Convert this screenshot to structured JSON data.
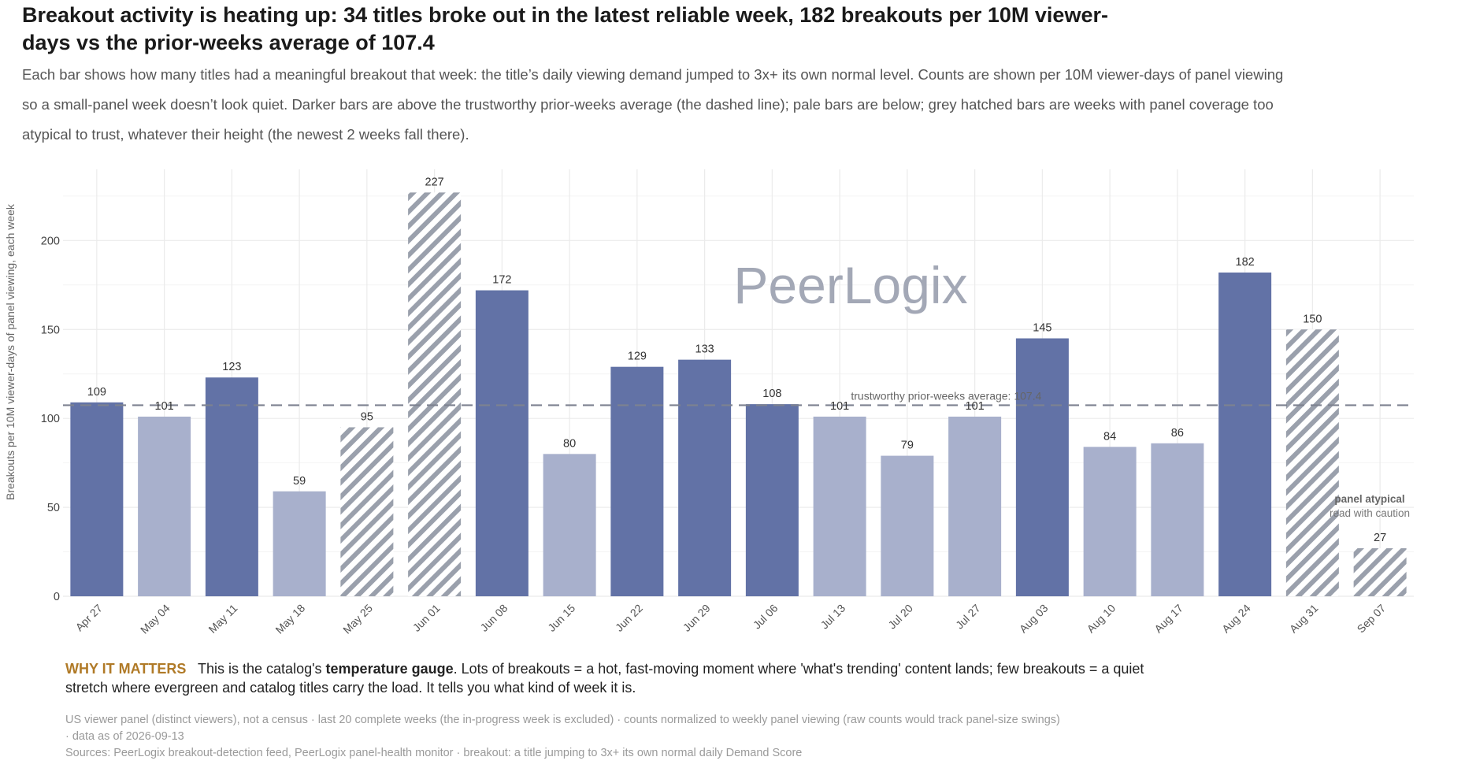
{
  "title": "Breakout activity is heating up: 34 titles broke out in the latest reliable week, 182 breakouts per 10M viewer-days vs the prior-weeks average of 107.4",
  "subtitle": "Each bar shows how many titles had a meaningful breakout that week: the title’s daily viewing demand jumped to 3x+ its own normal level. Counts are shown per 10M viewer-days of panel viewing so a small-panel week doesn’t look quiet. Darker bars are above the trustworthy prior-weeks average (the dashed line); pale bars are below; grey hatched bars are weeks with panel coverage too atypical to trust, whatever their height (the newest 2 weeks fall there).",
  "watermark": "PeerLogix",
  "why": {
    "lead": "WHY IT MATTERS",
    "text_before": "This is the catalog's",
    "emphasis": "temperature gauge",
    "text_after": ". Lots of breakouts = a hot, fast-moving moment where 'what's trending' content lands; few breakouts = a quiet stretch where evergreen and catalog titles carry the load. It tells you what kind of week it is."
  },
  "footnotes": {
    "line1": "US viewer panel (distinct viewers), not a census · last 20 complete weeks (the in-progress week is excluded) · counts normalized to weekly panel viewing (raw counts would track panel-size swings)",
    "line2": "· data as of 2026-09-13",
    "line3": "Sources: PeerLogix breakout-detection feed, PeerLogix panel-health monitor · breakout: a title jumping to 3x+ its own normal daily Demand Score"
  },
  "colors": {
    "above_average": "#6272a6",
    "below_average": "#a8b0cc",
    "atypical_hatch": "#9aa0ac",
    "reference_line": "#7d8290",
    "grid": "#ebebeb",
    "watermark": "#a3a8b6",
    "why_lead": "#b07a27"
  },
  "chart_data": {
    "type": "bar",
    "ylabel": "Breakouts per 10M viewer-days of panel viewing, each week",
    "xlabel": "",
    "ylim": [
      0,
      240
    ],
    "yticks": [
      0,
      50,
      100,
      150,
      200
    ],
    "grid": true,
    "categories": [
      "Apr 27",
      "May 04",
      "May 11",
      "May 18",
      "May 25",
      "Jun 01",
      "Jun 08",
      "Jun 15",
      "Jun 22",
      "Jun 29",
      "Jul 06",
      "Jul 13",
      "Jul 20",
      "Jul 27",
      "Aug 03",
      "Aug 10",
      "Aug 17",
      "Aug 24",
      "Aug 31",
      "Sep 07"
    ],
    "values": [
      109,
      101,
      123,
      59,
      95,
      227,
      172,
      80,
      129,
      133,
      108,
      101,
      79,
      101,
      145,
      84,
      86,
      182,
      150,
      27
    ],
    "status": [
      "above",
      "below",
      "above",
      "below",
      "atypical",
      "atypical",
      "above",
      "below",
      "above",
      "above",
      "above",
      "below",
      "below",
      "below",
      "above",
      "below",
      "below",
      "above",
      "atypical",
      "atypical"
    ],
    "reference_line": {
      "value": 107.4,
      "label": "trustworthy prior-weeks average: 107.4"
    },
    "annotation": {
      "title": "panel atypical",
      "text": "read with caution"
    }
  }
}
